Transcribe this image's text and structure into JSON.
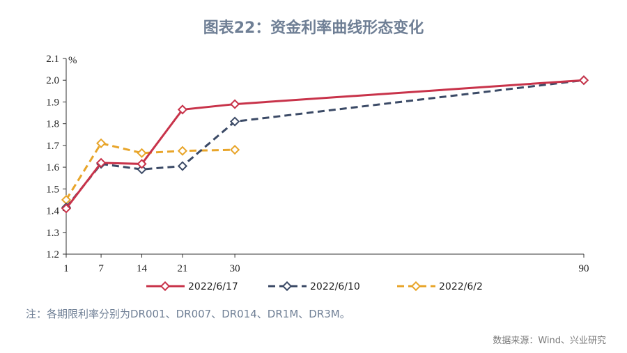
{
  "title": "图表22：资金利率曲线形态变化",
  "note": "注：各期限利率分别为DR001、DR007、DR014、DR1M、DR3M。",
  "source": "数据来源：Wind、兴业研究",
  "chart_data": {
    "type": "line",
    "title": "图表22：资金利率曲线形态变化",
    "ylabel": "%",
    "xlabel": "",
    "x": [
      1,
      7,
      14,
      21,
      30,
      90
    ],
    "x_ticks": [
      "1",
      "7",
      "14",
      "21",
      "30",
      "90"
    ],
    "ylim": [
      1.2,
      2.1
    ],
    "y_ticks": [
      "1.2",
      "1.3",
      "1.4",
      "1.5",
      "1.6",
      "1.7",
      "1.8",
      "1.9",
      "2.0",
      "2.1"
    ],
    "grid": false,
    "legend": "bottom",
    "series": [
      {
        "name": "2022/6/17",
        "color": "#c8334a",
        "style": "solid",
        "values": [
          1.41,
          1.62,
          1.615,
          1.865,
          1.89,
          2.0
        ]
      },
      {
        "name": "2022/6/10",
        "color": "#3b4a66",
        "style": "dashed",
        "values": [
          1.415,
          1.615,
          1.59,
          1.605,
          1.81,
          2.0
        ]
      },
      {
        "name": "2022/6/2",
        "color": "#e8a52a",
        "style": "dashed",
        "values": [
          1.45,
          1.71,
          1.665,
          1.675,
          1.68,
          null
        ]
      }
    ]
  }
}
